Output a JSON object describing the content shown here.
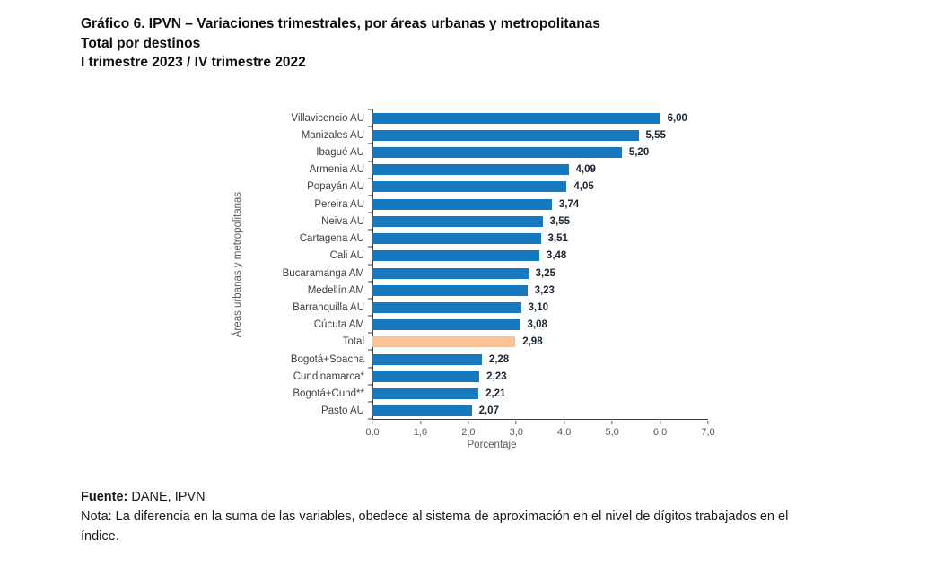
{
  "title": {
    "line1": "Gráfico 6. IPVN – Variaciones trimestrales, por áreas urbanas y metropolitanas",
    "line2": "Total por destinos",
    "line3": "I trimestre 2023 / IV trimestre 2022"
  },
  "chart_data": {
    "type": "bar",
    "orientation": "horizontal",
    "categories": [
      "Villavicencio AU",
      "Manizales AU",
      "Ibagué AU",
      "Armenia AU",
      "Popayán AU",
      "Pereira AU",
      "Neiva AU",
      "Cartagena AU",
      "Cali AU",
      "Bucaramanga AM",
      "Medellín AM",
      "Barranquilla AU",
      "Cúcuta AM",
      "Total",
      "Bogotá+Soacha",
      "Cundinamarca*",
      "Bogotá+Cund**",
      "Pasto AU"
    ],
    "values": [
      6.0,
      5.55,
      5.2,
      4.09,
      4.05,
      3.74,
      3.55,
      3.51,
      3.48,
      3.25,
      3.23,
      3.1,
      3.08,
      2.98,
      2.28,
      2.23,
      2.21,
      2.07
    ],
    "value_labels": [
      "6,00",
      "5,55",
      "5,20",
      "4,09",
      "4,05",
      "3,74",
      "3,55",
      "3,51",
      "3,48",
      "3,25",
      "3,23",
      "3,10",
      "3,08",
      "2,98",
      "2,28",
      "2,23",
      "2,21",
      "2,07"
    ],
    "highlight_category": "Total",
    "bar_color": "#1678BE",
    "highlight_color": "#F8C396",
    "xlabel": "Porcentaje",
    "ylabel": "Áreas urbanas y metropolitanas",
    "xlim": [
      0,
      7
    ],
    "x_ticks": [
      "0,0",
      "1,0",
      "2,0",
      "3,0",
      "4,0",
      "5,0",
      "6,0",
      "7,0"
    ],
    "grid": false,
    "legend": false
  },
  "footer": {
    "fuente_label": "Fuente:",
    "fuente_text": " DANE, IPVN",
    "nota_line1": "Nota: La diferencia en la suma de las variables, obedece al sistema de aproximación en el nivel de dígitos trabajados en el",
    "nota_line2": "índice."
  }
}
